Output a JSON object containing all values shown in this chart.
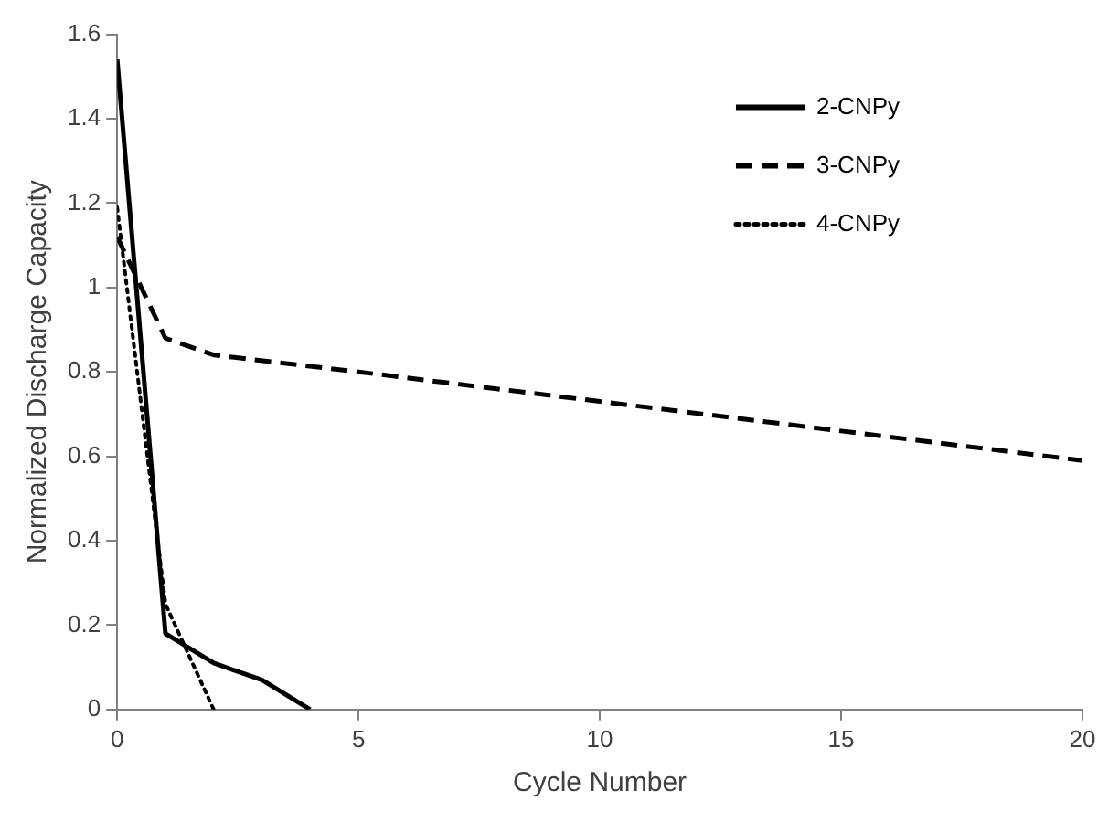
{
  "chart_data": {
    "type": "line",
    "xlabel": "Cycle Number",
    "ylabel": "Normalized Discharge Capacity",
    "xlim": [
      0,
      20
    ],
    "xticks": [
      0,
      5,
      10,
      15,
      20
    ],
    "ylim": [
      0,
      1.6
    ],
    "yticks": [
      0,
      {
        "value": 0.2,
        "label": "0.2"
      },
      {
        "value": 0.4,
        "label": "0.4"
      },
      {
        "value": 0.6,
        "label": "0.6"
      },
      {
        "value": 0.8,
        "label": "0.8"
      },
      1,
      {
        "value": 1.2,
        "label": "1.2"
      },
      {
        "value": 1.4,
        "label": "1.4"
      },
      {
        "value": 1.6,
        "label": "1.6"
      }
    ],
    "grid": false,
    "legend": "top right",
    "marker": "none",
    "series": [
      {
        "name": "2-CNPy",
        "color": "#000000",
        "line_style": "solid",
        "x": [
          0,
          1,
          2,
          3,
          4
        ],
        "values": [
          1.54,
          0.18,
          0.11,
          0.07,
          0
        ]
      },
      {
        "name": "3-CNPy",
        "color": "#000000",
        "line_style": "dashed",
        "x": [
          0,
          1,
          2,
          5,
          10,
          15,
          20
        ],
        "values": [
          1.12,
          0.88,
          0.84,
          0.8,
          0.73,
          0.66,
          0.59
        ]
      },
      {
        "name": "4-CNPy",
        "color": "#000000",
        "line_style": "dotted",
        "x": [
          0,
          1,
          2
        ],
        "values": [
          1.19,
          0.25,
          0
        ]
      }
    ]
  }
}
